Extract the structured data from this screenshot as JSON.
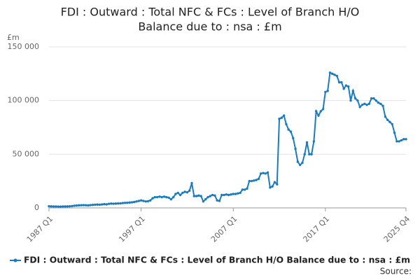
{
  "chart_data": {
    "type": "line",
    "title": [
      "FDI : Outward : Total NFC & FCs : Level of Branch H/O",
      "Balance due to : nsa : £m"
    ],
    "y_label": "£m",
    "source": "Source:",
    "categories": [
      "1987 Q1",
      null,
      null,
      null,
      null,
      null,
      null,
      null,
      null,
      null,
      null,
      null,
      null,
      null,
      null,
      null,
      null,
      null,
      null,
      null,
      null,
      null,
      null,
      null,
      null,
      null,
      null,
      null,
      null,
      null,
      null,
      null,
      null,
      null,
      null,
      null,
      null,
      null,
      null,
      null,
      "1997 Q1",
      null,
      null,
      null,
      null,
      null,
      null,
      null,
      null,
      null,
      null,
      null,
      null,
      null,
      null,
      null,
      null,
      null,
      null,
      null,
      null,
      null,
      null,
      null,
      null,
      null,
      null,
      null,
      null,
      null,
      null,
      null,
      null,
      null,
      null,
      null,
      null,
      null,
      null,
      null,
      "2007 Q1",
      null,
      null,
      null,
      null,
      null,
      null,
      null,
      null,
      null,
      null,
      null,
      null,
      null,
      null,
      null,
      null,
      null,
      null,
      null,
      null,
      null,
      null,
      null,
      null,
      null,
      null,
      null,
      null,
      null,
      null,
      null,
      null,
      null,
      null,
      null,
      null,
      null,
      null,
      null,
      "2017 Q1",
      null,
      null,
      null,
      null,
      null,
      null,
      null,
      null,
      null,
      null,
      null,
      null,
      null,
      null,
      null,
      null,
      null,
      null,
      null,
      null,
      null,
      null,
      null,
      null,
      null,
      null,
      null,
      null,
      null,
      null,
      null,
      null,
      null,
      null,
      "2025 Q4"
    ],
    "series": [
      {
        "name": "FDI : Outward : Total NFC & FCs : Level of Branch H/O Balance due to : nsa : £m",
        "color": "#1a7bbf",
        "values": [
          1500,
          1400,
          1300,
          1300,
          1200,
          1200,
          1300,
          1300,
          1400,
          1500,
          1700,
          2000,
          2200,
          2400,
          2500,
          2600,
          2500,
          2300,
          2600,
          2800,
          3000,
          3100,
          3000,
          3200,
          3500,
          3300,
          3800,
          4000,
          3900,
          4000,
          4100,
          4200,
          4500,
          4700,
          4800,
          5000,
          5200,
          5500,
          6000,
          6500,
          7000,
          6500,
          6000,
          6200,
          7000,
          9000,
          10000,
          10000,
          10500,
          10000,
          10500,
          10000,
          9500,
          8000,
          10000,
          13000,
          14000,
          12000,
          14000,
          15000,
          14500,
          16000,
          23000,
          11000,
          11000,
          11500,
          11000,
          6000,
          8000,
          10000,
          11000,
          12000,
          11500,
          7000,
          6500,
          12000,
          12000,
          12500,
          12000,
          12500,
          13000,
          13000,
          13500,
          14000,
          17000,
          17000,
          18000,
          25000,
          25000,
          25500,
          26000,
          27000,
          32000,
          32500,
          32000,
          33000,
          19000,
          20000,
          24000,
          22000,
          83000,
          84000,
          86000,
          78000,
          73000,
          71000,
          65000,
          55000,
          43000,
          40000,
          42000,
          50000,
          61000,
          50000,
          50000,
          62000,
          90000,
          86000,
          90000,
          92000,
          108000,
          109000,
          126000,
          125000,
          124000,
          123000,
          117000,
          117000,
          111000,
          114000,
          113000,
          100000,
          109000,
          102000,
          100000,
          94000,
          96000,
          97000,
          96000,
          97000,
          102000,
          102000,
          100000,
          98000,
          97000,
          95000,
          85000,
          82000,
          80000,
          78000,
          70000,
          62000,
          62000,
          63000,
          64000,
          64000
        ]
      }
    ],
    "ylim": [
      0,
      150000
    ],
    "yticks": [
      0,
      {
        "value": 50000,
        "label": "50 000"
      },
      {
        "value": 100000,
        "label": "100 000"
      },
      {
        "value": 150000,
        "label": "150 000"
      }
    ],
    "grid": true,
    "legend": "bottom"
  }
}
